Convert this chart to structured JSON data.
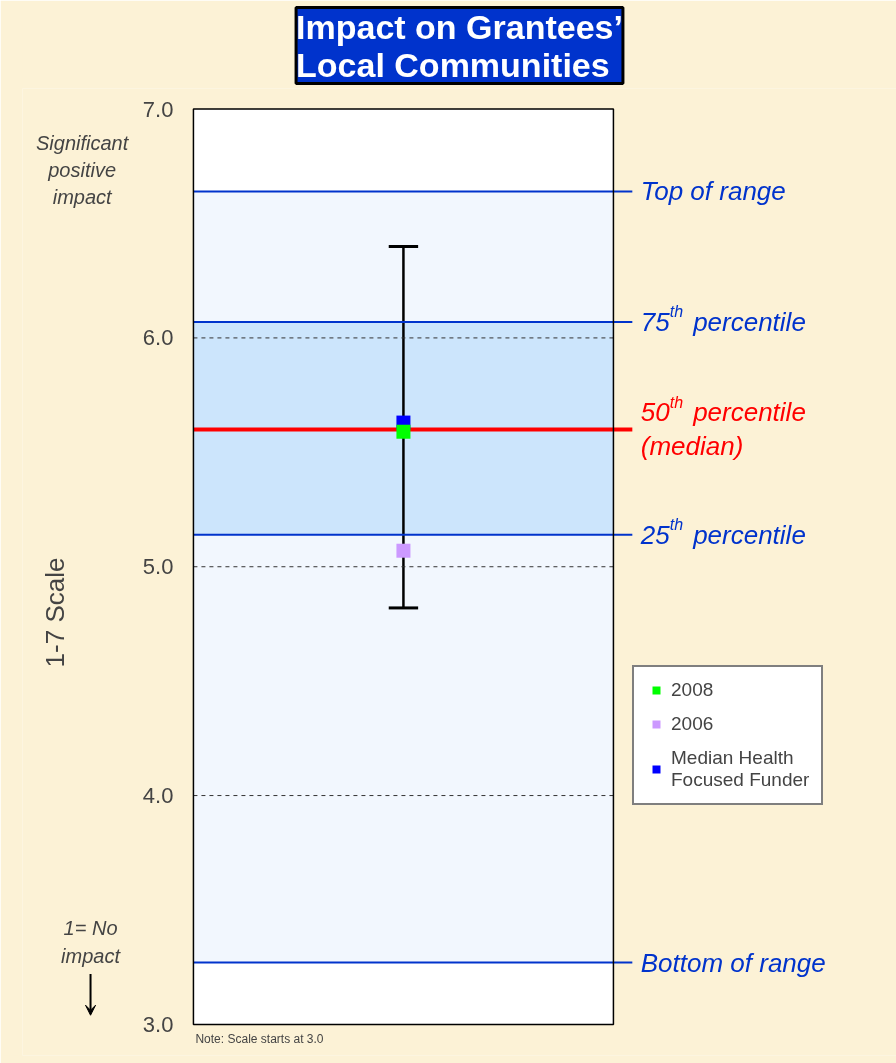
{
  "chart_data": {
    "type": "scatter",
    "title": "Impact on Grantees’ Local Communities",
    "ylabel": "1-7 Scale",
    "categories": [
      null
    ],
    "ylim": [
      3,
      7
    ],
    "yticks": [
      {
        "value": 3,
        "label": "3.0"
      },
      {
        "value": 4,
        "label": "4.0"
      },
      {
        "value": 5,
        "label": "5.0"
      },
      {
        "value": 6,
        "label": "6.0"
      },
      {
        "value": 7,
        "label": "7.0"
      }
    ],
    "grid": "y",
    "marker": "square",
    "legend": "right",
    "bands": [
      {
        "axis": "y",
        "from": 3.27,
        "to": 6.64,
        "color": "#f2f7fe"
      },
      {
        "axis": "y",
        "from": 5.14,
        "to": 6.07,
        "color": "#cce5fc"
      }
    ],
    "ref_lines": [
      {
        "axis": "y",
        "value": 6.64,
        "label": "Top of range",
        "color": "#0033cc"
      },
      {
        "axis": "y",
        "value": 6.07,
        "label": "75$^{th}$ percentile",
        "color": "#0033cc"
      },
      {
        "axis": "y",
        "value": 5.6,
        "label": "50$^{th}$ percentile (median)",
        "color": "#ff0000"
      },
      {
        "axis": "y",
        "value": 5.14,
        "label": "25$^{th}$ percentile",
        "color": "#0033cc"
      },
      {
        "axis": "y",
        "value": 3.27,
        "label": "Bottom of range",
        "color": "#0033cc"
      }
    ],
    "series": [
      {
        "name": "2008",
        "color": "#00ff00",
        "values": [
          5.59
        ],
        "errors": [
          [
            4.82,
            6.4
          ]
        ]
      },
      {
        "name": "2006",
        "color": "#cc99ff",
        "values": [
          5.07
        ]
      },
      {
        "name": "Median Health Focused Funder",
        "color": "#0000ff",
        "values": [
          5.63
        ]
      }
    ],
    "annotations": [
      "Significant positive impact",
      "1= No impact",
      "Note: Scale starts at 3.0"
    ]
  }
}
